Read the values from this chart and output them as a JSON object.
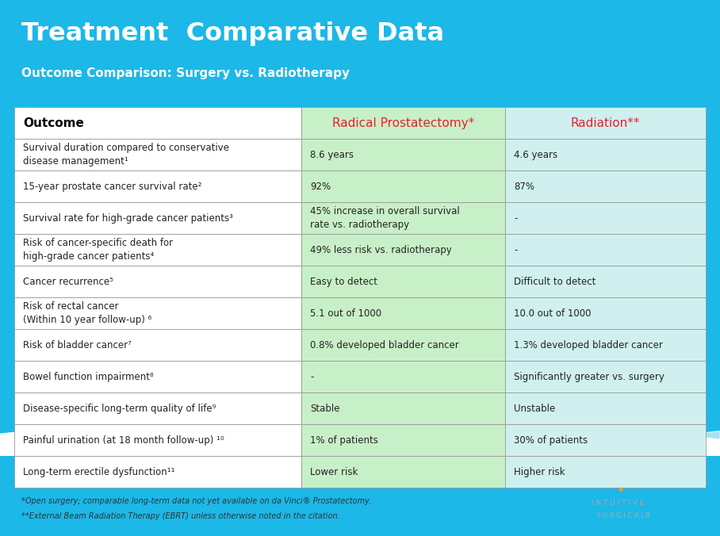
{
  "title": "Treatment  Comparative Data",
  "subtitle": "Outcome Comparison: Surgery vs. Radiotherapy",
  "header_bg": "#1BB8E8",
  "title_color": "#FFFFFF",
  "subtitle_color": "#FFFFFF",
  "col1_header": "Outcome",
  "col2_header": "Radical Prostatectomy*",
  "col3_header": "Radiation**",
  "header_text_color": "#E8202A",
  "col1_header_color": "#000000",
  "table_border_color": "#999999",
  "col2_bg": "#C8F0C8",
  "col3_bg": "#D0F0F0",
  "col1_bg": "#FFFFFF",
  "footnote1": "*Open surgery; comparable long-term data not yet available on da Vinci® Prostatectomy.",
  "footnote2": "**External Beam Radiation Therapy (EBRT) unless otherwise noted in the citation.",
  "logo_line1": "I N T U I T I V E",
  "logo_line2": "S U R G I C A L®",
  "logo_dot_color": "#E8A020",
  "rows": [
    {
      "outcome": "Survival duration compared to conservative\ndisease management¹",
      "surgery": "8.6 years",
      "radiation": "4.6 years"
    },
    {
      "outcome": "15-year prostate cancer survival rate²",
      "surgery": "92%",
      "radiation": "87%"
    },
    {
      "outcome": "Survival rate for high-grade cancer patients³",
      "surgery": "45% increase in overall survival\nrate vs. radiotherapy",
      "radiation": "-"
    },
    {
      "outcome": "Risk of cancer-specific death for\nhigh-grade cancer patients⁴",
      "surgery": "49% less risk vs. radiotherapy",
      "radiation": "-"
    },
    {
      "outcome": "Cancer recurrence⁵",
      "surgery": "Easy to detect",
      "radiation": "Difficult to detect"
    },
    {
      "outcome": "Risk of rectal cancer\n(Within 10 year follow-up) ⁶",
      "surgery": "5.1 out of 1000",
      "radiation": "10.0 out of 1000"
    },
    {
      "outcome": "Risk of bladder cancer⁷",
      "surgery": "0.8% developed bladder cancer",
      "radiation": "1.3% developed bladder cancer"
    },
    {
      "outcome": "Bowel function impairment⁸",
      "surgery": "-",
      "radiation": "Significantly greater vs. surgery"
    },
    {
      "outcome": "Disease-specific long-term quality of life⁹",
      "surgery": "Stable",
      "radiation": "Unstable"
    },
    {
      "outcome": "Painful urination (at 18 month follow-up) ¹⁰",
      "surgery": "1% of patients",
      "radiation": "30% of patients"
    },
    {
      "outcome": "Long-term erectile dysfunction¹¹",
      "surgery": "Lower risk",
      "radiation": "Higher risk"
    }
  ]
}
